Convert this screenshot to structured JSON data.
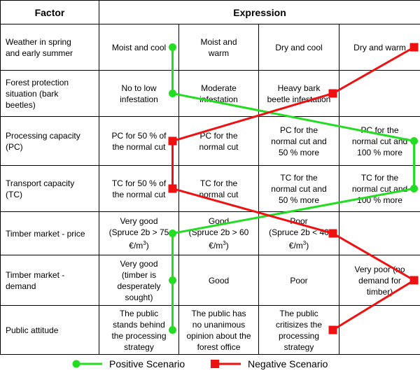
{
  "table": {
    "header_factor": "Factor",
    "header_expression": "Expression",
    "rows": [
      {
        "factor": [
          "Weather in spring",
          "and early summer"
        ],
        "cells": [
          [
            "Moist and cool"
          ],
          [
            "Moist and",
            "warm"
          ],
          [
            "Dry and cool"
          ],
          [
            "Dry and warm"
          ]
        ]
      },
      {
        "factor": [
          "Forest protection",
          "situation (bark",
          "beetles)"
        ],
        "cells": [
          [
            "No to low",
            "infestation"
          ],
          [
            "Moderate",
            "infestation"
          ],
          [
            "Heavy bark",
            "beetle infestation"
          ],
          [
            ""
          ]
        ]
      },
      {
        "factor": [
          "Processing capacity",
          "(PC)"
        ],
        "cells": [
          [
            "PC for 50 % of",
            "the normal cut"
          ],
          [
            "PC for the",
            "normal cut"
          ],
          [
            "PC for the",
            "normal cut and",
            "50 % more"
          ],
          [
            "PC for the",
            "normal cut and",
            "100 % more"
          ]
        ]
      },
      {
        "factor": [
          "Transport capacity",
          "(TC)"
        ],
        "cells": [
          [
            "TC for 50 % of",
            "the normal cut"
          ],
          [
            "TC for the",
            "normal cut"
          ],
          [
            "TC for the",
            "normal cut and",
            "50 % more"
          ],
          [
            "TC for the",
            "normal cut and",
            "100 % more"
          ]
        ]
      },
      {
        "factor": [
          "Timber market - price"
        ],
        "cells": [
          [
            "Very good",
            "(Spruce 2b > 75",
            "€/m³)"
          ],
          [
            "Good",
            "(Spruce 2b > 60",
            "€/m³)"
          ],
          [
            "Poor",
            "(Spruce 2b < 40",
            "€/m³)"
          ],
          [
            ""
          ]
        ]
      },
      {
        "factor": [
          "Timber market -",
          "demand"
        ],
        "cells": [
          [
            "Very good",
            "(timber is",
            "desperately",
            "sought)"
          ],
          [
            "Good"
          ],
          [
            "Poor"
          ],
          [
            "Very poor (no",
            "demand for",
            "timber)"
          ]
        ]
      },
      {
        "factor": [
          "Public attitude"
        ],
        "cells": [
          [
            "The public",
            "stands behind",
            "the processing",
            "strategy"
          ],
          [
            "The public has",
            "no unanimous",
            "opinion about the",
            "forest office"
          ],
          [
            "The public",
            "critisizes the",
            "processing",
            "strategy"
          ],
          [
            ""
          ]
        ]
      }
    ]
  },
  "legend": {
    "positive_label": "Positive Scenario",
    "negative_label": "Negative Scenario"
  },
  "scenarios": {
    "positive": {
      "color": "#22dd22",
      "marker": "circle",
      "columns_by_row": [
        1,
        1,
        4,
        4,
        1,
        1,
        1
      ]
    },
    "negative": {
      "color": "#ee1111",
      "marker": "square",
      "columns_by_row": [
        4,
        3,
        1,
        1,
        3,
        4,
        3
      ]
    }
  }
}
